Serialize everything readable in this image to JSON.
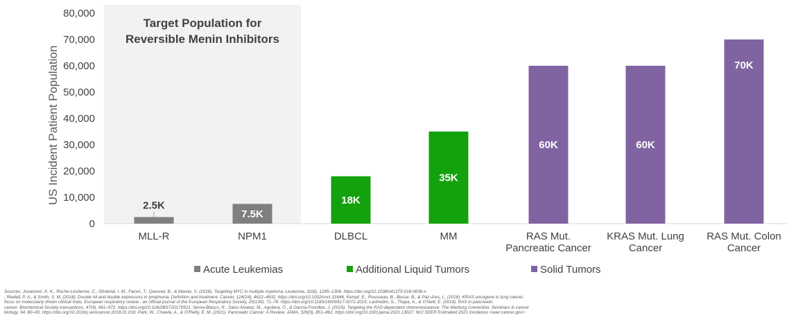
{
  "colors": {
    "acute_leukemias": "#7f7f7f",
    "additional_liquid_tumors": "#13a10e",
    "solid_tumors": "#8064a2",
    "target_bg": "#f2f2f2",
    "label_dark": "#404040",
    "label_light": "#ffffff"
  },
  "annotation": {
    "line1": "Target Population for",
    "line2": "Reversible Menin Inhibitors"
  },
  "chart_data": {
    "type": "bar",
    "title": "",
    "xlabel": "",
    "ylabel": "US Incident Patient Population",
    "ylim": [
      0,
      80000
    ],
    "yticks": [
      0,
      10000,
      20000,
      30000,
      40000,
      50000,
      60000,
      70000,
      80000
    ],
    "ytick_labels": [
      "0",
      "10,000",
      "20,000",
      "30,000",
      "40,000",
      "50,000",
      "60,000",
      "70,000",
      "80,000"
    ],
    "grid": false,
    "legend_position": "bottom",
    "categories": [
      [
        "MLL-R"
      ],
      [
        "NPM1"
      ],
      [
        "DLBCL"
      ],
      [
        "MM"
      ],
      [
        "RAS Mut.",
        "Pancreatic Cancer"
      ],
      [
        "KRAS Mut. Lung",
        "Cancer"
      ],
      [
        "RAS Mut. Colon",
        "Cancer"
      ]
    ],
    "values": [
      2500,
      7500,
      18000,
      35000,
      60000,
      60000,
      70000
    ],
    "data_labels": [
      "2.5K",
      "7.5K",
      "18K",
      "35K",
      "60K",
      "60K",
      "70K"
    ],
    "groups": [
      "Acute Leukemias",
      "Acute Leukemias",
      "Additional Liquid Tumors",
      "Additional Liquid Tumors",
      "Solid Tumors",
      "Solid Tumors",
      "Solid Tumors"
    ],
    "legend": [
      {
        "name": "Acute Leukemias",
        "color": "#7f7f7f"
      },
      {
        "name": "Additional Liquid Tumors",
        "color": "#13a10e"
      },
      {
        "name": "Solid Tumors",
        "color": "#8064a2"
      }
    ]
  },
  "sources": [
    "Sources: Jovanović, K. K., Roche-Lestienne, C., Ghobrial, I. M., Facon, T., Quesnel, B., & Manier, S. (2018). Targeting MYC in multiple myeloma. Leukemia, 32(6), 1295–1306. https://doi.org/10.1038/s41375-018-0036-x",
    "; Riedell, P. A., & Smith, S. M. (2018). Double hit and double expressors in lymphoma: Definition and treatment. Cancer, 124(24), 4622–4632. https://doi.org/10.1002/cncr.31646; Kempf, E., Rousseau, B., Besse, B., & Paz-Ares, L. (2016). KRAS oncogene in lung cancer:",
    "focus on molecularly driven clinical trials. European respiratory review : an official journal of the European Respiratory Society, 25(139), 71–76. https://doi.org/10.1183/16000617.0071-2015; Lanfredini, S., Thapa, A., & O'Neill, E. (2019). RAS in pancreatic",
    "cancer. Biochemical Society transactions, 47(4), 961–972. https://doi.org/10.1042/BST20170521; Serna-Blasco, R., Sanz-Álvarez, M., Aguilera, Ó., & García-Foncillas, J. (2019). Targeting the RAS-dependent chemoresistance: The Warburg connection. Seminars in cancer",
    "biology, 54, 80–90. https://doi.org/10.1016/j.semcancer.2018.01.016; Park, W., Chawla, A., & O'Reilly, E. M. (2021). Pancreatic Cancer: A Review. JAMA, 326(9), 851–862. https://doi.org/10.1001/jama.2021.13027; NCI SEER Estimated 2021 Incidence <seer.cancer.gov>"
  ]
}
